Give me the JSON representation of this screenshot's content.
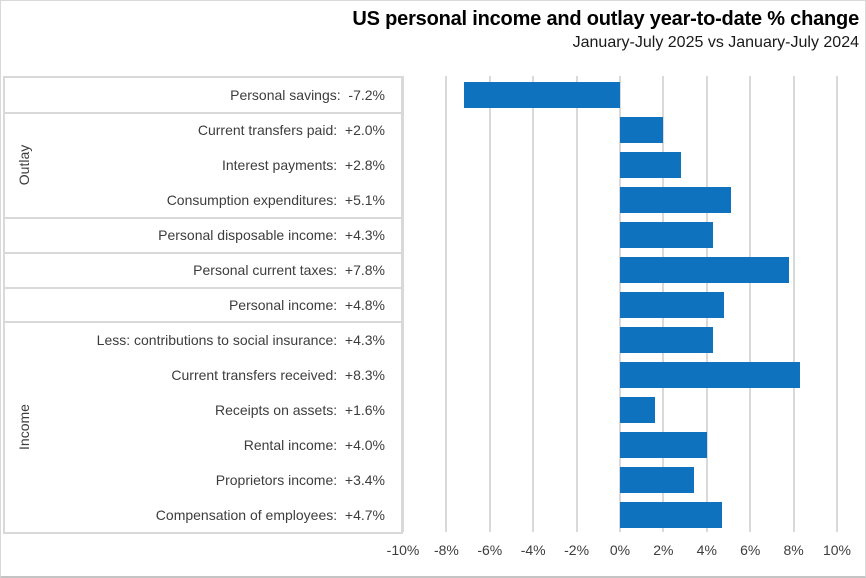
{
  "header": {
    "title": "US personal income and outlay year-to-date % change",
    "subtitle": "January-July 2025 vs January-July 2024"
  },
  "chart_data": {
    "type": "bar",
    "orientation": "horizontal",
    "title": "US personal income and outlay year-to-date % change",
    "subtitle": "January-July 2025 vs January-July 2024",
    "xlabel": "",
    "ylabel": "",
    "xlim": [
      -10,
      10
    ],
    "grid": true,
    "bar_color": "#0e72be",
    "gridline_color": "#d9d9d9",
    "axis": {
      "min": -10,
      "max": 10,
      "tick_step": 2,
      "tick_labels": [
        "-10%",
        "-8%",
        "-6%",
        "-4%",
        "-2%",
        "0%",
        "2%",
        "4%",
        "6%",
        "8%",
        "10%"
      ]
    },
    "rows": [
      {
        "label": "Personal savings",
        "change": "-7.2%",
        "value": -7.2
      },
      {
        "label": "Current transfers paid",
        "change": "+2.0%",
        "value": 2.0
      },
      {
        "label": "Interest payments",
        "change": "+2.8%",
        "value": 2.8
      },
      {
        "label": "Consumption expenditures",
        "change": "+5.1%",
        "value": 5.1
      },
      {
        "label": "Personal disposable income",
        "change": "+4.3%",
        "value": 4.3
      },
      {
        "label": "Personal current taxes",
        "change": "+7.8%",
        "value": 7.8
      },
      {
        "label": "Personal income",
        "change": "+4.8%",
        "value": 4.8
      },
      {
        "label": "Less: contributions to social insurance",
        "change": "+4.3%",
        "value": 4.3
      },
      {
        "label": "Current transfers received",
        "change": "+8.3%",
        "value": 8.3
      },
      {
        "label": "Receipts on assets",
        "change": "+1.6%",
        "value": 1.6
      },
      {
        "label": "Rental income",
        "change": "+4.0%",
        "value": 4.0
      },
      {
        "label": "Proprietors income",
        "change": "+3.4%",
        "value": 3.4
      },
      {
        "label": "Compensation of employees",
        "change": "+4.7%",
        "value": 4.7
      }
    ],
    "groups": [
      {
        "label": "Outlay",
        "start": 1,
        "end": 3
      },
      {
        "label": "Income",
        "start": 7,
        "end": 12
      }
    ],
    "group_boundaries_after": [
      0,
      3,
      4,
      5,
      6
    ]
  }
}
